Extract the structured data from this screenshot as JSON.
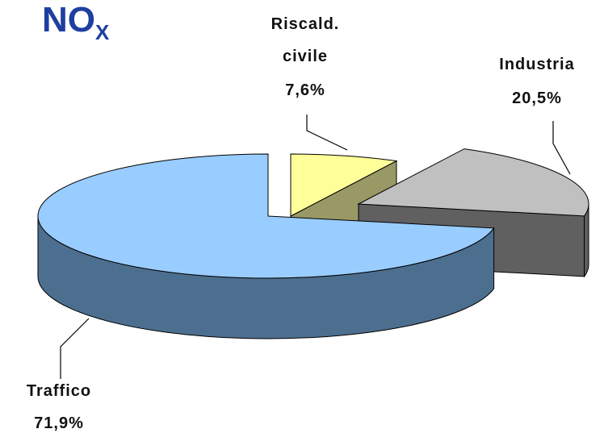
{
  "chart_data": {
    "type": "pie3d",
    "title": "NO",
    "title_subscript": "X",
    "categories": [
      "Riscald. civile",
      "Industria",
      "Traffico"
    ],
    "values": [
      7.6,
      20.5,
      71.9
    ],
    "value_labels": [
      "7,6%",
      "20,5%",
      "71,9%"
    ],
    "colors": [
      "#ffff99",
      "#c0c0c0",
      "#99ccff"
    ],
    "side_colors": [
      "#999966",
      "#606060",
      "#4d6f8f"
    ]
  }
}
